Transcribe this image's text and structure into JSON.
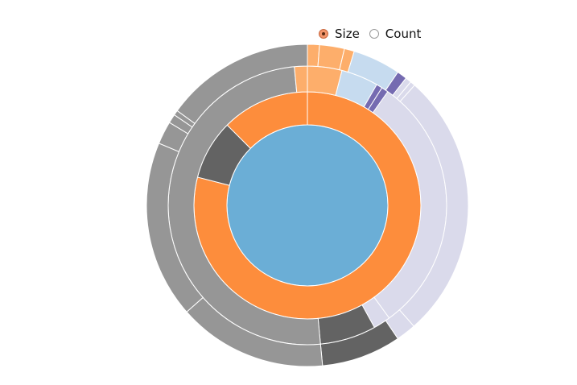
{
  "controls": {
    "options": [
      {
        "label": "Size",
        "checked": true
      },
      {
        "label": "Count",
        "checked": false
      }
    ]
  },
  "chart_data": {
    "type": "sunburst",
    "title": "",
    "mode": "size",
    "colors": {
      "center": "#6baed6",
      "orange": "#fd8d3c",
      "light_orange": "#fdae6b",
      "pale_blue": "#c6dbef",
      "purple": "#756bb1",
      "lavender": "#dadaeb",
      "dark_gray": "#636363",
      "gray": "#969696"
    },
    "rings": [
      [
        {
          "start": 0.0,
          "end": 1.0,
          "color": "center"
        }
      ],
      [
        {
          "start": 0.0,
          "end": 0.79,
          "color": "orange"
        },
        {
          "start": 0.79,
          "end": 0.875,
          "color": "dark_gray"
        },
        {
          "start": 0.875,
          "end": 1.0,
          "color": "orange"
        }
      ],
      [
        {
          "start": 0.0,
          "end": 0.04,
          "color": "light_orange"
        },
        {
          "start": 0.04,
          "end": 0.083,
          "color": "pale_blue"
        },
        {
          "start": 0.083,
          "end": 0.09,
          "color": "purple"
        },
        {
          "start": 0.09,
          "end": 0.098,
          "color": "purple"
        },
        {
          "start": 0.098,
          "end": 0.4,
          "color": "lavender"
        },
        {
          "start": 0.4,
          "end": 0.42,
          "color": "lavender"
        },
        {
          "start": 0.42,
          "end": 0.485,
          "color": "dark_gray"
        },
        {
          "start": 0.485,
          "end": 0.985,
          "color": "gray"
        },
        {
          "start": 0.985,
          "end": 1.0,
          "color": "light_orange"
        }
      ],
      [
        {
          "start": 0.0,
          "end": 0.012,
          "color": "light_orange"
        },
        {
          "start": 0.012,
          "end": 0.037,
          "color": "light_orange"
        },
        {
          "start": 0.037,
          "end": 0.047,
          "color": "light_orange"
        },
        {
          "start": 0.047,
          "end": 0.095,
          "color": "pale_blue"
        },
        {
          "start": 0.095,
          "end": 0.105,
          "color": "purple"
        },
        {
          "start": 0.105,
          "end": 0.111,
          "color": "lavender"
        },
        {
          "start": 0.111,
          "end": 0.116,
          "color": "lavender"
        },
        {
          "start": 0.116,
          "end": 0.385,
          "color": "lavender"
        },
        {
          "start": 0.385,
          "end": 0.405,
          "color": "lavender"
        },
        {
          "start": 0.405,
          "end": 0.485,
          "color": "dark_gray"
        },
        {
          "start": 0.485,
          "end": 0.635,
          "color": "gray"
        },
        {
          "start": 0.635,
          "end": 0.813,
          "color": "gray"
        },
        {
          "start": 0.813,
          "end": 0.836,
          "color": "gray"
        },
        {
          "start": 0.836,
          "end": 0.845,
          "color": "gray"
        },
        {
          "start": 0.845,
          "end": 0.85,
          "color": "gray"
        },
        {
          "start": 0.85,
          "end": 1.0,
          "color": "gray"
        }
      ]
    ]
  }
}
